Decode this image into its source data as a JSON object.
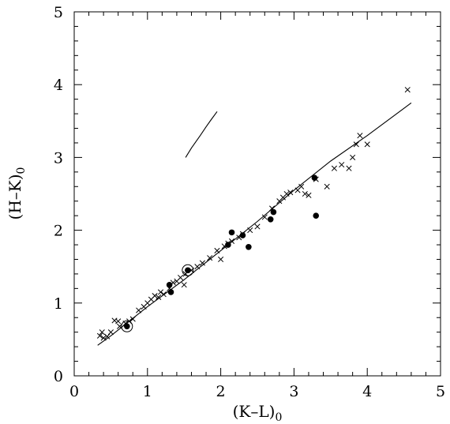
{
  "chart_data": {
    "type": "scatter",
    "title": "",
    "xlabel": "(K–L)",
    "xlabel_subscript": "0",
    "ylabel": "(H–K)",
    "ylabel_subscript": "0",
    "xlim": [
      0,
      5
    ],
    "ylim": [
      0,
      5
    ],
    "xticks": [
      "0",
      "1",
      "2",
      "3",
      "4",
      "5"
    ],
    "yticks": [
      "0",
      "1",
      "2",
      "3",
      "4",
      "5"
    ],
    "grid": false,
    "legend": "none",
    "series": [
      {
        "marker": "cross",
        "points": [
          [
            0.35,
            0.55
          ],
          [
            0.38,
            0.6
          ],
          [
            0.4,
            0.52
          ],
          [
            0.45,
            0.54
          ],
          [
            0.5,
            0.6
          ],
          [
            0.55,
            0.76
          ],
          [
            0.6,
            0.75
          ],
          [
            0.62,
            0.68
          ],
          [
            0.7,
            0.72
          ],
          [
            0.75,
            0.75
          ],
          [
            0.8,
            0.78
          ],
          [
            0.88,
            0.9
          ],
          [
            0.95,
            0.95
          ],
          [
            1.0,
            1.0
          ],
          [
            1.05,
            1.05
          ],
          [
            1.1,
            1.1
          ],
          [
            1.15,
            1.08
          ],
          [
            1.18,
            1.15
          ],
          [
            1.22,
            1.12
          ],
          [
            1.3,
            1.2
          ],
          [
            1.35,
            1.28
          ],
          [
            1.4,
            1.3
          ],
          [
            1.45,
            1.35
          ],
          [
            1.5,
            1.25
          ],
          [
            1.52,
            1.4
          ],
          [
            1.6,
            1.45
          ],
          [
            1.68,
            1.5
          ],
          [
            1.75,
            1.55
          ],
          [
            1.85,
            1.62
          ],
          [
            1.95,
            1.72
          ],
          [
            2.0,
            1.6
          ],
          [
            2.05,
            1.78
          ],
          [
            2.1,
            1.82
          ],
          [
            2.15,
            1.85
          ],
          [
            2.25,
            1.9
          ],
          [
            2.3,
            1.95
          ],
          [
            2.4,
            2.0
          ],
          [
            2.5,
            2.05
          ],
          [
            2.6,
            2.18
          ],
          [
            2.7,
            2.3
          ],
          [
            2.8,
            2.4
          ],
          [
            2.85,
            2.45
          ],
          [
            2.9,
            2.5
          ],
          [
            2.95,
            2.52
          ],
          [
            3.05,
            2.55
          ],
          [
            3.1,
            2.6
          ],
          [
            3.15,
            2.5
          ],
          [
            3.2,
            2.48
          ],
          [
            3.3,
            2.7
          ],
          [
            3.45,
            2.6
          ],
          [
            3.55,
            2.85
          ],
          [
            3.65,
            2.9
          ],
          [
            3.75,
            2.85
          ],
          [
            3.8,
            3.0
          ],
          [
            3.85,
            3.18
          ],
          [
            3.9,
            3.3
          ],
          [
            4.0,
            3.18
          ],
          [
            4.55,
            3.93
          ]
        ]
      },
      {
        "marker": "filled-circle",
        "points": [
          [
            0.72,
            0.68
          ],
          [
            1.3,
            1.25
          ],
          [
            1.32,
            1.15
          ],
          [
            1.55,
            1.45
          ],
          [
            2.1,
            1.8
          ],
          [
            2.15,
            1.97
          ],
          [
            2.3,
            1.93
          ],
          [
            2.38,
            1.77
          ],
          [
            2.68,
            2.15
          ],
          [
            2.72,
            2.25
          ],
          [
            3.28,
            2.72
          ],
          [
            3.3,
            2.2
          ]
        ]
      },
      {
        "marker": "open-circle",
        "points": [
          [
            0.72,
            0.68
          ],
          [
            1.55,
            1.45
          ]
        ]
      }
    ],
    "lines": [
      {
        "name": "fit",
        "points": [
          [
            0.32,
            0.42
          ],
          [
            0.5,
            0.55
          ],
          [
            1.0,
            0.95
          ],
          [
            1.5,
            1.32
          ],
          [
            2.0,
            1.72
          ],
          [
            2.5,
            2.12
          ],
          [
            3.0,
            2.55
          ],
          [
            3.5,
            2.95
          ],
          [
            4.0,
            3.3
          ],
          [
            4.6,
            3.75
          ]
        ]
      },
      {
        "name": "short-segment",
        "points": [
          [
            1.52,
            3.0
          ],
          [
            1.6,
            3.13
          ],
          [
            1.72,
            3.3
          ],
          [
            1.8,
            3.42
          ],
          [
            1.87,
            3.52
          ],
          [
            1.95,
            3.63
          ]
        ]
      }
    ]
  }
}
